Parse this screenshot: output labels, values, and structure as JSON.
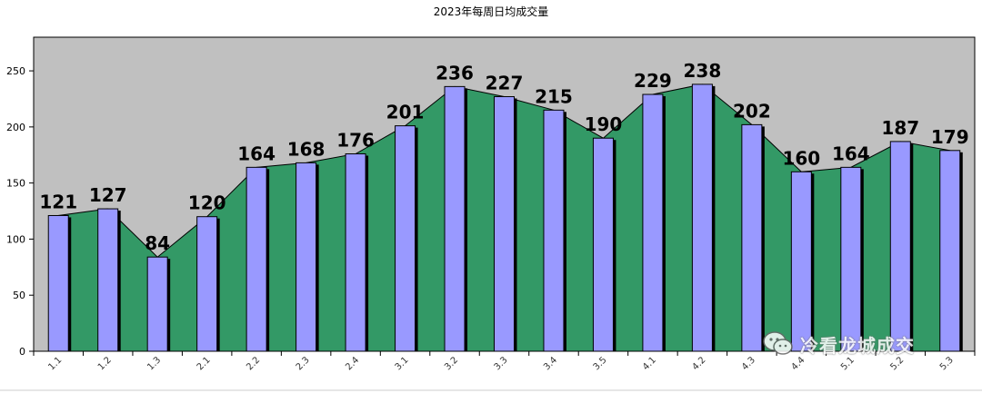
{
  "chart_data": {
    "type": "bar",
    "title": "2023年每周日均成交量",
    "categories": [
      "1.1",
      "1.2",
      "1.3",
      "2.1",
      "2.2",
      "2.3",
      "2.4",
      "3.1",
      "3.2",
      "3.3",
      "3.4",
      "3.5",
      "4.1",
      "4.2",
      "4.3",
      "4.4",
      "5.1",
      "5.2",
      "5.3"
    ],
    "values": [
      121,
      127,
      84,
      120,
      164,
      168,
      176,
      201,
      236,
      227,
      215,
      190,
      229,
      238,
      202,
      160,
      164,
      187,
      179
    ],
    "ylim": [
      0,
      280
    ],
    "yticks": [
      0,
      50,
      100,
      150,
      200,
      250
    ],
    "grid": false,
    "xlabel": "",
    "ylabel": "",
    "overlay": "area",
    "colors": {
      "bar_fill": "#9999ff",
      "bar_shadow": "#000000",
      "area_fill": "#339966",
      "plot_bg": "#c0c0c0"
    }
  },
  "watermark": {
    "text": "冷看龙城成交",
    "icon": "wechat-icon"
  }
}
